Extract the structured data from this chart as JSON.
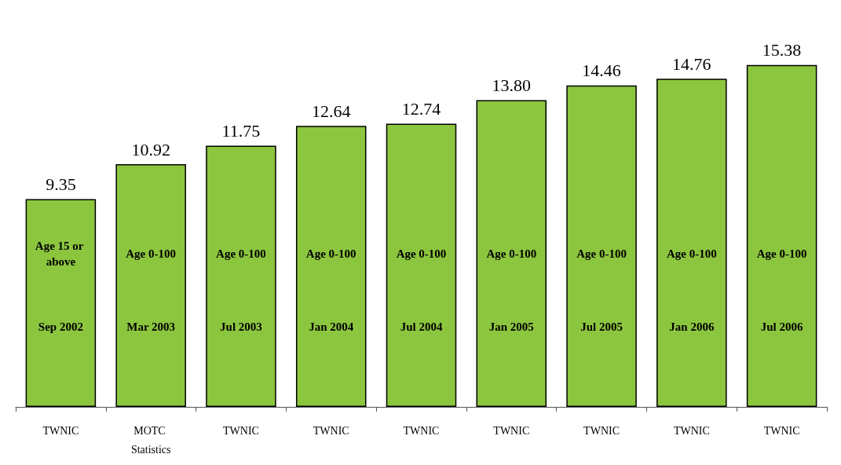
{
  "chart_data": {
    "type": "bar",
    "categories": [
      "TWNIC",
      "MOTC Statistics",
      "TWNIC",
      "TWNIC",
      "TWNIC",
      "TWNIC",
      "TWNIC",
      "TWNIC",
      "TWNIC"
    ],
    "values": [
      9.35,
      10.92,
      11.75,
      12.64,
      12.74,
      13.8,
      14.46,
      14.76,
      15.38
    ],
    "color": "#8cc63f",
    "value_labels": [
      "9.35",
      "10.92",
      "11.75",
      "12.64",
      "12.74",
      "13.80",
      "14.46",
      "14.76",
      "15.38"
    ],
    "annotations": [
      "Age 15 or above",
      "Sep 2002",
      "Age 0-100",
      "Mar 2003",
      "Age 0-100",
      "Jul 2003",
      "Age 0-100",
      "Jan 2004",
      "Age 0-100",
      "Jul 2004",
      "Age 0-100",
      "Jan 2005",
      "Age 0-100",
      "Jul 2005",
      "Age 0-100",
      "Jan 2006",
      "Age 0-100",
      "Jul 2006"
    ]
  }
}
